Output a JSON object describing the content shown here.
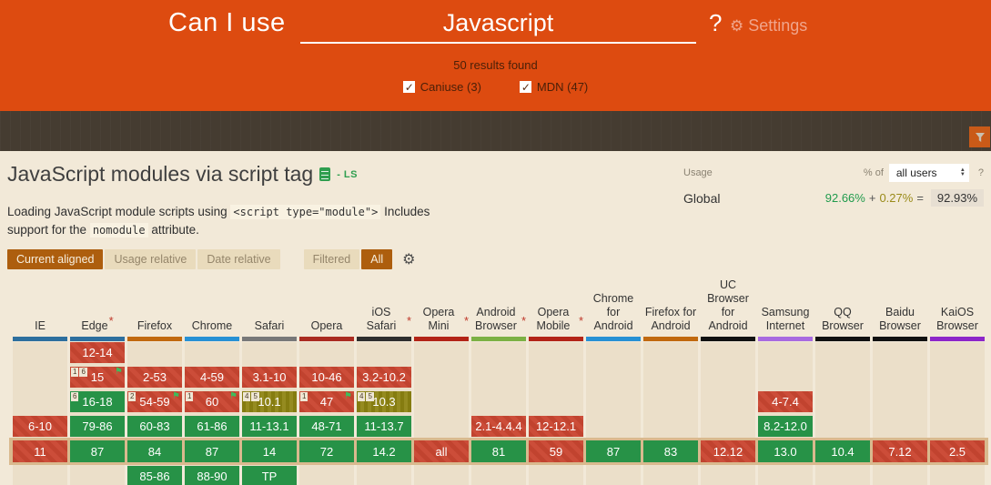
{
  "header": {
    "brand": "Can I use",
    "search_value": "Javascript",
    "help": "?",
    "settings_label": "Settings",
    "results": "50 results found",
    "filters": [
      {
        "label": "Caniuse (3)",
        "checked": true
      },
      {
        "label": "MDN (47)",
        "checked": true
      }
    ]
  },
  "feature": {
    "title": "JavaScript modules via script tag",
    "status": "- LS"
  },
  "usage": {
    "label": "Usage",
    "percent_of": "% of",
    "select_value": "all users",
    "help": "?",
    "scope": "Global",
    "supported": "92.66%",
    "plus": "+",
    "partial": "0.27%",
    "equals": "=",
    "total": "92.93%"
  },
  "description": {
    "part1": "Loading JavaScript module scripts using ",
    "code1": "<script type=\"module\">",
    "part2": " Includes support for the ",
    "code2": "nomodule",
    "part3": " attribute."
  },
  "controls": {
    "buttons": [
      {
        "label": "Current aligned",
        "active": true
      },
      {
        "label": "Usage relative",
        "active": false
      },
      {
        "label": "Date relative",
        "active": false
      },
      {
        "label": "Filtered",
        "active": false
      },
      {
        "label": "All",
        "active": true
      }
    ]
  },
  "colors": {
    "brand_orange": "#dd4b10",
    "dark_bar": "#453c31",
    "page_bg": "#f2e9d8",
    "support_yes": "#279247",
    "support_no": "#c1432f",
    "support_partial": "#857c10",
    "current_row_highlight": "#d9b98e",
    "active_button": "#ad5e0e",
    "usage_green": "#219b4d",
    "usage_olive": "#9a8b1a"
  },
  "table": {
    "row_kinds": [
      "past",
      "past",
      "past",
      "past",
      "current",
      "future"
    ],
    "browsers": [
      {
        "name": "IE",
        "star": false,
        "bar_color": "#2d6f9e",
        "cells": [
          null,
          null,
          null,
          {
            "text": "6-10",
            "type": "n"
          },
          {
            "text": "11",
            "type": "n"
          },
          null
        ]
      },
      {
        "name": "Edge",
        "star": true,
        "bar_color": "#2d6f9e",
        "cells": [
          {
            "text": "12-14",
            "type": "n"
          },
          {
            "text": "15",
            "type": "n",
            "notes": [
              "1",
              "6"
            ],
            "flag": true
          },
          {
            "text": "16-18",
            "type": "y",
            "notes": [
              "6"
            ]
          },
          {
            "text": "79-86",
            "type": "y"
          },
          {
            "text": "87",
            "type": "y"
          },
          null
        ]
      },
      {
        "name": "Firefox",
        "star": false,
        "bar_color": "#c1690f",
        "cells": [
          null,
          {
            "text": "2-53",
            "type": "n"
          },
          {
            "text": "54-59",
            "type": "n",
            "notes": [
              "2"
            ],
            "flag": true
          },
          {
            "text": "60-83",
            "type": "y"
          },
          {
            "text": "84",
            "type": "y"
          },
          {
            "text": "85-86",
            "type": "y"
          }
        ]
      },
      {
        "name": "Chrome",
        "star": false,
        "bar_color": "#2791d4",
        "cells": [
          null,
          {
            "text": "4-59",
            "type": "n"
          },
          {
            "text": "60",
            "type": "n",
            "notes": [
              "1"
            ],
            "flag": true
          },
          {
            "text": "61-86",
            "type": "y"
          },
          {
            "text": "87",
            "type": "y"
          },
          {
            "text": "88-90",
            "type": "y"
          }
        ]
      },
      {
        "name": "Safari",
        "star": false,
        "bar_color": "#787878",
        "cells": [
          null,
          {
            "text": "3.1-10",
            "type": "n"
          },
          {
            "text": "10.1",
            "type": "p",
            "notes": [
              "4",
              "5"
            ]
          },
          {
            "text": "11-13.1",
            "type": "y"
          },
          {
            "text": "14",
            "type": "y"
          },
          {
            "text": "TP",
            "type": "y"
          }
        ]
      },
      {
        "name": "Opera",
        "star": false,
        "bar_color": "#aa2b20",
        "cells": [
          null,
          {
            "text": "10-46",
            "type": "n"
          },
          {
            "text": "47",
            "type": "n",
            "notes": [
              "1"
            ],
            "flag": true
          },
          {
            "text": "48-71",
            "type": "y"
          },
          {
            "text": "72",
            "type": "y"
          },
          null
        ]
      },
      {
        "name": "iOS Safari",
        "star": true,
        "bar_color": "#2e2e2e",
        "cells": [
          null,
          {
            "text": "3.2-10.2",
            "type": "n"
          },
          {
            "text": "10.3",
            "type": "p",
            "notes": [
              "4",
              "5"
            ]
          },
          {
            "text": "11-13.7",
            "type": "y"
          },
          {
            "text": "14.2",
            "type": "y"
          },
          null
        ]
      },
      {
        "name": "Opera Mini",
        "star": true,
        "bar_color": "#b32417",
        "cells": [
          null,
          null,
          null,
          null,
          {
            "text": "all",
            "type": "n"
          },
          null
        ]
      },
      {
        "name": "Android Browser",
        "star": true,
        "bar_color": "#7cb144",
        "cells": [
          null,
          null,
          null,
          {
            "text": "2.1-4.4.4",
            "type": "n"
          },
          {
            "text": "81",
            "type": "y"
          },
          null
        ]
      },
      {
        "name": "Opera Mobile",
        "star": true,
        "bar_color": "#b32417",
        "cells": [
          null,
          null,
          null,
          {
            "text": "12-12.1",
            "type": "n"
          },
          {
            "text": "59",
            "type": "n"
          },
          null
        ]
      },
      {
        "name": "Chrome for Android",
        "star": false,
        "bar_color": "#2791d4",
        "cells": [
          null,
          null,
          null,
          null,
          {
            "text": "87",
            "type": "y"
          },
          null
        ]
      },
      {
        "name": "Firefox for Android",
        "star": false,
        "bar_color": "#c1690f",
        "cells": [
          null,
          null,
          null,
          null,
          {
            "text": "83",
            "type": "y"
          },
          null
        ]
      },
      {
        "name": "UC Browser for Android",
        "star": false,
        "bar_color": "#111111",
        "cells": [
          null,
          null,
          null,
          null,
          {
            "text": "12.12",
            "type": "n"
          },
          null
        ]
      },
      {
        "name": "Samsung Internet",
        "star": false,
        "bar_color": "#a86ae0",
        "cells": [
          null,
          null,
          {
            "text": "4-7.4",
            "type": "n"
          },
          {
            "text": "8.2-12.0",
            "type": "y"
          },
          {
            "text": "13.0",
            "type": "y"
          },
          null
        ]
      },
      {
        "name": "QQ Browser",
        "star": false,
        "bar_color": "#111111",
        "cells": [
          null,
          null,
          null,
          null,
          {
            "text": "10.4",
            "type": "y"
          },
          null
        ]
      },
      {
        "name": "Baidu Browser",
        "star": false,
        "bar_color": "#111111",
        "cells": [
          null,
          null,
          null,
          null,
          {
            "text": "7.12",
            "type": "n"
          },
          null
        ]
      },
      {
        "name": "KaiOS Browser",
        "star": false,
        "bar_color": "#8d26c9",
        "cells": [
          null,
          null,
          null,
          null,
          {
            "text": "2.5",
            "type": "n"
          },
          null
        ]
      }
    ]
  }
}
